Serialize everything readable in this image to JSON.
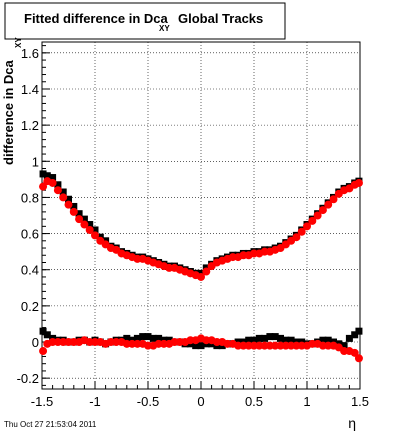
{
  "chart_data": {
    "type": "scatter",
    "title": "Fitted difference in Dca",
    "title_subscript": "XY",
    "title_suffix": "Global Tracks",
    "xlabel": "η",
    "ylabel": "difference in Dca",
    "ylabel_subscript": "XY",
    "xlim": [
      -1.5,
      1.5
    ],
    "ylim": [
      -0.26,
      1.66
    ],
    "xticks": [
      -1.5,
      -1,
      -0.5,
      0,
      0.5,
      1,
      1.5
    ],
    "xtick_labels": [
      "-1.5",
      "-1",
      "-0.5",
      "0",
      "0.5",
      "1",
      "1.5"
    ],
    "yticks": [
      -0.2,
      0,
      0.2,
      0.4,
      0.6,
      0.8,
      1,
      1.2,
      1.4,
      1.6
    ],
    "ytick_labels": [
      "-0.2",
      "0",
      "0.2",
      "0.4",
      "0.6",
      "0.8",
      "1",
      "1.2",
      "1.4",
      "1.6"
    ],
    "grid": true,
    "legend": "none",
    "series": [
      {
        "color": "#000000",
        "marker": "square",
        "x": [
          -1.49,
          -1.45,
          -1.4,
          -1.35,
          -1.3,
          -1.25,
          -1.2,
          -1.15,
          -1.1,
          -1.05,
          -1.0,
          -0.95,
          -0.9,
          -0.85,
          -0.8,
          -0.75,
          -0.7,
          -0.65,
          -0.6,
          -0.55,
          -0.5,
          -0.45,
          -0.4,
          -0.35,
          -0.3,
          -0.25,
          -0.2,
          -0.15,
          -0.1,
          -0.05,
          0.0,
          0.05,
          0.1,
          0.15,
          0.2,
          0.25,
          0.3,
          0.35,
          0.4,
          0.45,
          0.5,
          0.55,
          0.6,
          0.65,
          0.7,
          0.75,
          0.8,
          0.85,
          0.9,
          0.95,
          1.0,
          1.05,
          1.1,
          1.15,
          1.2,
          1.25,
          1.3,
          1.35,
          1.4,
          1.45,
          1.49
        ],
        "y": [
          0.93,
          0.92,
          0.91,
          0.87,
          0.83,
          0.79,
          0.75,
          0.71,
          0.68,
          0.65,
          0.62,
          0.58,
          0.56,
          0.53,
          0.52,
          0.5,
          0.49,
          0.48,
          0.47,
          0.47,
          0.46,
          0.45,
          0.44,
          0.43,
          0.42,
          0.42,
          0.41,
          0.4,
          0.39,
          0.38,
          0.38,
          0.41,
          0.43,
          0.45,
          0.46,
          0.47,
          0.48,
          0.48,
          0.49,
          0.49,
          0.5,
          0.5,
          0.51,
          0.51,
          0.52,
          0.53,
          0.55,
          0.57,
          0.59,
          0.62,
          0.65,
          0.68,
          0.71,
          0.74,
          0.77,
          0.8,
          0.83,
          0.85,
          0.86,
          0.88,
          0.89
        ]
      },
      {
        "color": "#000000",
        "marker": "square",
        "x": [
          -1.49,
          -1.45,
          -1.4,
          -1.35,
          -1.3,
          -1.25,
          -1.2,
          -1.15,
          -1.1,
          -1.05,
          -1.0,
          -0.95,
          -0.9,
          -0.85,
          -0.8,
          -0.75,
          -0.7,
          -0.65,
          -0.6,
          -0.55,
          -0.5,
          -0.45,
          -0.4,
          -0.35,
          -0.3,
          -0.25,
          -0.2,
          -0.15,
          -0.1,
          -0.05,
          0.0,
          0.05,
          0.1,
          0.15,
          0.2,
          0.25,
          0.3,
          0.35,
          0.4,
          0.45,
          0.5,
          0.55,
          0.6,
          0.65,
          0.7,
          0.75,
          0.8,
          0.85,
          0.9,
          0.95,
          1.0,
          1.05,
          1.1,
          1.15,
          1.2,
          1.25,
          1.3,
          1.35,
          1.4,
          1.45,
          1.49
        ],
        "y": [
          0.06,
          0.04,
          0.02,
          0.01,
          0.01,
          0.0,
          0.0,
          0.01,
          0.01,
          0.0,
          0.01,
          0.0,
          -0.01,
          0.0,
          0.01,
          0.01,
          0.02,
          0.01,
          0.02,
          0.03,
          0.03,
          0.02,
          0.02,
          0.01,
          0.01,
          0.0,
          0.0,
          -0.01,
          -0.01,
          -0.02,
          -0.02,
          -0.01,
          -0.01,
          -0.02,
          -0.02,
          -0.01,
          -0.01,
          0.0,
          0.0,
          0.01,
          0.01,
          0.02,
          0.02,
          0.03,
          0.03,
          0.02,
          0.01,
          0.01,
          0.0,
          0.0,
          -0.01,
          -0.01,
          0.0,
          0.01,
          0.01,
          0.0,
          -0.01,
          -0.02,
          0.02,
          0.04,
          0.06
        ]
      },
      {
        "color": "#ff0000",
        "marker": "circle",
        "x": [
          -1.49,
          -1.45,
          -1.4,
          -1.35,
          -1.3,
          -1.25,
          -1.2,
          -1.15,
          -1.1,
          -1.05,
          -1.0,
          -0.95,
          -0.9,
          -0.85,
          -0.8,
          -0.75,
          -0.7,
          -0.65,
          -0.6,
          -0.55,
          -0.5,
          -0.45,
          -0.4,
          -0.35,
          -0.3,
          -0.25,
          -0.2,
          -0.15,
          -0.1,
          -0.05,
          0.0,
          0.05,
          0.1,
          0.15,
          0.2,
          0.25,
          0.3,
          0.35,
          0.4,
          0.45,
          0.5,
          0.55,
          0.6,
          0.65,
          0.7,
          0.75,
          0.8,
          0.85,
          0.9,
          0.95,
          1.0,
          1.05,
          1.1,
          1.15,
          1.2,
          1.25,
          1.3,
          1.35,
          1.4,
          1.45,
          1.49
        ],
        "y": [
          0.86,
          0.89,
          0.88,
          0.84,
          0.8,
          0.76,
          0.72,
          0.68,
          0.65,
          0.62,
          0.59,
          0.56,
          0.54,
          0.52,
          0.51,
          0.49,
          0.48,
          0.47,
          0.46,
          0.46,
          0.45,
          0.44,
          0.43,
          0.42,
          0.41,
          0.41,
          0.4,
          0.39,
          0.38,
          0.37,
          0.36,
          0.39,
          0.42,
          0.44,
          0.45,
          0.46,
          0.47,
          0.47,
          0.48,
          0.48,
          0.49,
          0.49,
          0.5,
          0.5,
          0.51,
          0.52,
          0.54,
          0.56,
          0.58,
          0.61,
          0.64,
          0.67,
          0.7,
          0.73,
          0.76,
          0.79,
          0.82,
          0.84,
          0.85,
          0.87,
          0.88
        ]
      },
      {
        "color": "#ff0000",
        "marker": "circle",
        "x": [
          -1.49,
          -1.45,
          -1.4,
          -1.35,
          -1.3,
          -1.25,
          -1.2,
          -1.15,
          -1.1,
          -1.05,
          -1.0,
          -0.95,
          -0.9,
          -0.85,
          -0.8,
          -0.75,
          -0.7,
          -0.65,
          -0.6,
          -0.55,
          -0.5,
          -0.45,
          -0.4,
          -0.35,
          -0.3,
          -0.25,
          -0.2,
          -0.15,
          -0.1,
          -0.05,
          0.0,
          0.05,
          0.1,
          0.15,
          0.2,
          0.25,
          0.3,
          0.35,
          0.4,
          0.45,
          0.5,
          0.55,
          0.6,
          0.65,
          0.7,
          0.75,
          0.8,
          0.85,
          0.9,
          0.95,
          1.0,
          1.05,
          1.1,
          1.15,
          1.2,
          1.25,
          1.3,
          1.35,
          1.4,
          1.45,
          1.49
        ],
        "y": [
          -0.05,
          -0.01,
          0.0,
          0.0,
          0.0,
          0.0,
          0.0,
          0.0,
          0.01,
          0.0,
          0.0,
          0.0,
          -0.01,
          0.0,
          0.0,
          0.0,
          -0.01,
          -0.01,
          -0.01,
          -0.01,
          -0.02,
          -0.02,
          -0.01,
          -0.01,
          -0.01,
          0.0,
          0.0,
          0.0,
          0.01,
          0.01,
          0.02,
          0.01,
          0.01,
          0.0,
          0.0,
          -0.01,
          -0.01,
          -0.02,
          -0.02,
          -0.02,
          -0.02,
          -0.02,
          -0.02,
          -0.02,
          -0.02,
          -0.02,
          -0.02,
          -0.02,
          -0.02,
          -0.02,
          -0.02,
          -0.01,
          -0.01,
          -0.02,
          -0.02,
          -0.02,
          -0.03,
          -0.05,
          -0.05,
          -0.06,
          -0.09
        ]
      }
    ]
  },
  "timestamp": "Thu Oct 27 21:53:04 2011"
}
